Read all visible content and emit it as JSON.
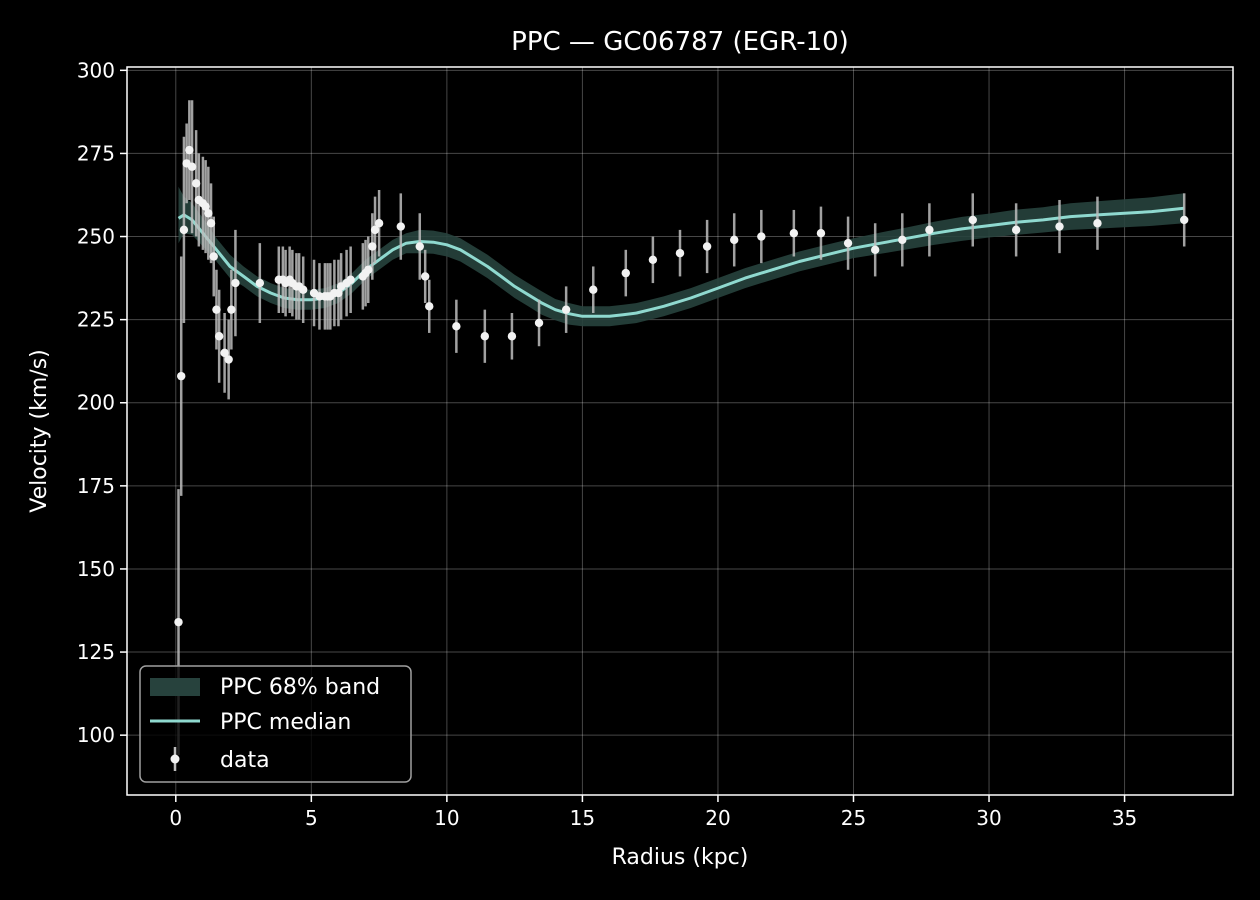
{
  "colors": {
    "background": "#000000",
    "axes": "#ffffff",
    "grid": "#ffffff",
    "median": "#8fd9cf",
    "band": "#27423d",
    "points": "#f2f2f2",
    "errorbars": "#bdbdbd"
  },
  "chart_data": {
    "type": "scatter",
    "title": "PPC — GC06787 (EGR-10)",
    "xlabel": "Radius (kpc)",
    "ylabel": "Velocity (km/s)",
    "xlim": [
      -1.8,
      39.0
    ],
    "ylim": [
      82,
      301
    ],
    "xticks": [
      0,
      5,
      10,
      15,
      20,
      25,
      30,
      35
    ],
    "yticks": [
      100,
      125,
      150,
      175,
      200,
      225,
      250,
      275,
      300
    ],
    "grid": true,
    "legend_position": "lower-left",
    "legend": {
      "band_label": "PPC 68% band",
      "median_label": "PPC median",
      "data_label": "data"
    },
    "series": [
      {
        "name": "data",
        "kind": "errorbar-points",
        "x": [
          0.1,
          0.2,
          0.3,
          0.4,
          0.5,
          0.6,
          0.75,
          0.85,
          1.0,
          1.1,
          1.2,
          1.3,
          1.4,
          1.5,
          1.6,
          1.8,
          1.95,
          2.05,
          2.2,
          3.1,
          3.8,
          3.95,
          4.05,
          4.2,
          4.3,
          4.45,
          4.55,
          4.7,
          5.1,
          5.3,
          5.5,
          5.6,
          5.7,
          5.85,
          6.0,
          6.1,
          6.3,
          6.45,
          6.9,
          7.0,
          7.1,
          7.25,
          7.35,
          7.5,
          8.3,
          9.0,
          9.2,
          9.35,
          10.35,
          11.4,
          12.4,
          13.4,
          14.4,
          15.4,
          16.6,
          17.6,
          18.6,
          19.6,
          20.6,
          21.6,
          22.8,
          23.8,
          24.8,
          25.8,
          26.8,
          27.8,
          29.4,
          31.0,
          32.6,
          34.0,
          37.2
        ],
        "y": [
          134,
          208,
          252,
          272,
          276,
          271,
          266,
          261,
          260,
          259,
          257,
          254,
          244,
          228,
          220,
          215,
          213,
          228,
          236,
          236,
          237,
          237,
          236,
          237,
          236,
          235,
          235,
          234,
          233,
          232,
          232,
          232,
          232,
          233,
          233,
          235,
          236,
          237,
          238,
          239,
          240,
          247,
          252,
          254,
          253,
          247,
          238,
          229,
          223,
          220,
          220,
          224,
          228,
          234,
          239,
          243,
          245,
          247,
          249,
          250,
          251,
          251,
          248,
          246,
          249,
          252,
          255,
          252,
          253,
          254,
          255
        ],
        "yerr": [
          40,
          36,
          28,
          12,
          15,
          20,
          16,
          14,
          14,
          14,
          14,
          12,
          12,
          12,
          14,
          12,
          12,
          12,
          16,
          12,
          10,
          10,
          10,
          10,
          10,
          10,
          10,
          10,
          10,
          10,
          10,
          10,
          10,
          10,
          10,
          10,
          10,
          10,
          10,
          10,
          10,
          10,
          10,
          10,
          10,
          10,
          8,
          8,
          8,
          8,
          7,
          7,
          7,
          7,
          7,
          7,
          7,
          8,
          8,
          8,
          7,
          8,
          8,
          8,
          8,
          8,
          8,
          8,
          8,
          8,
          8
        ]
      },
      {
        "name": "PPC median",
        "kind": "line",
        "x": [
          0.1,
          0.3,
          0.6,
          1.0,
          1.5,
          2.0,
          2.5,
          3.0,
          3.5,
          4.0,
          4.5,
          5.0,
          5.5,
          6.0,
          6.5,
          7.0,
          7.5,
          8.0,
          8.5,
          9.0,
          9.5,
          10.0,
          10.5,
          11.0,
          11.5,
          12.0,
          12.5,
          13.0,
          13.5,
          14.0,
          14.5,
          15.0,
          15.5,
          16.0,
          16.5,
          17.0,
          17.5,
          18.0,
          19.0,
          20.0,
          21.0,
          22.0,
          23.0,
          24.0,
          25.0,
          26.0,
          27.0,
          28.0,
          29.0,
          30.0,
          31.0,
          32.0,
          33.0,
          34.0,
          35.0,
          36.0,
          37.2
        ],
        "y": [
          255.5,
          256.5,
          255,
          251,
          246,
          241,
          238,
          235,
          233,
          231.5,
          231,
          231,
          231.5,
          233,
          236,
          240,
          243,
          246,
          248,
          248.5,
          248.3,
          247.5,
          246,
          243.5,
          241,
          238,
          235,
          232.5,
          230,
          228,
          226.8,
          226,
          226,
          226,
          226.5,
          227,
          228,
          229,
          231.5,
          234.5,
          237.5,
          240,
          242.5,
          244.5,
          246.5,
          248,
          249.5,
          251,
          252.3,
          253.3,
          254.3,
          255,
          256,
          256.5,
          257,
          257.5,
          258.5
        ]
      },
      {
        "name": "PPC 68% band",
        "kind": "band",
        "x": [
          0.1,
          0.3,
          0.6,
          1.0,
          1.5,
          2.0,
          2.5,
          3.0,
          3.5,
          4.0,
          4.5,
          5.0,
          5.5,
          6.0,
          6.5,
          7.0,
          7.5,
          8.0,
          8.5,
          9.0,
          9.5,
          10.0,
          10.5,
          11.0,
          11.5,
          12.0,
          12.5,
          13.0,
          13.5,
          14.0,
          14.5,
          15.0,
          15.5,
          16.0,
          16.5,
          17.0,
          17.5,
          18.0,
          19.0,
          20.0,
          21.0,
          22.0,
          23.0,
          24.0,
          25.0,
          26.0,
          27.0,
          28.0,
          29.0,
          30.0,
          31.0,
          32.0,
          33.0,
          34.0,
          35.0,
          36.0,
          37.2
        ],
        "lower": [
          248,
          251,
          250.5,
          247,
          242.5,
          237.5,
          235,
          232,
          230,
          228.5,
          228,
          228,
          228.5,
          230,
          233,
          237,
          240,
          243,
          245,
          245,
          244.8,
          244,
          242.5,
          240,
          237.5,
          234.5,
          231.5,
          229,
          226.5,
          224.8,
          223.5,
          223,
          223,
          223,
          223.5,
          224,
          225,
          226,
          228.5,
          231.5,
          234.5,
          237,
          239.5,
          241.5,
          243.5,
          244.8,
          246.2,
          247.5,
          248.7,
          249.7,
          250.5,
          251.2,
          252,
          252.4,
          252.8,
          253.2,
          254
        ]
      },
      {
        "name": "PPC 68% band upper",
        "kind": "band-upper",
        "upper": [
          265,
          262,
          260,
          255.5,
          249.5,
          244.5,
          241,
          238,
          236,
          234.5,
          234,
          234,
          234.5,
          236,
          239,
          243,
          246,
          249,
          251,
          252,
          251.8,
          251,
          249.5,
          247,
          244.5,
          241.5,
          238.5,
          236,
          233.5,
          231.2,
          230,
          229,
          229,
          229,
          229.5,
          230,
          231,
          232,
          234.5,
          237.5,
          240.5,
          243,
          245.5,
          247.5,
          249.5,
          251.2,
          252.8,
          254.5,
          255.9,
          256.9,
          258.1,
          258.8,
          260,
          260.6,
          261.2,
          261.8,
          263
        ]
      }
    ]
  }
}
